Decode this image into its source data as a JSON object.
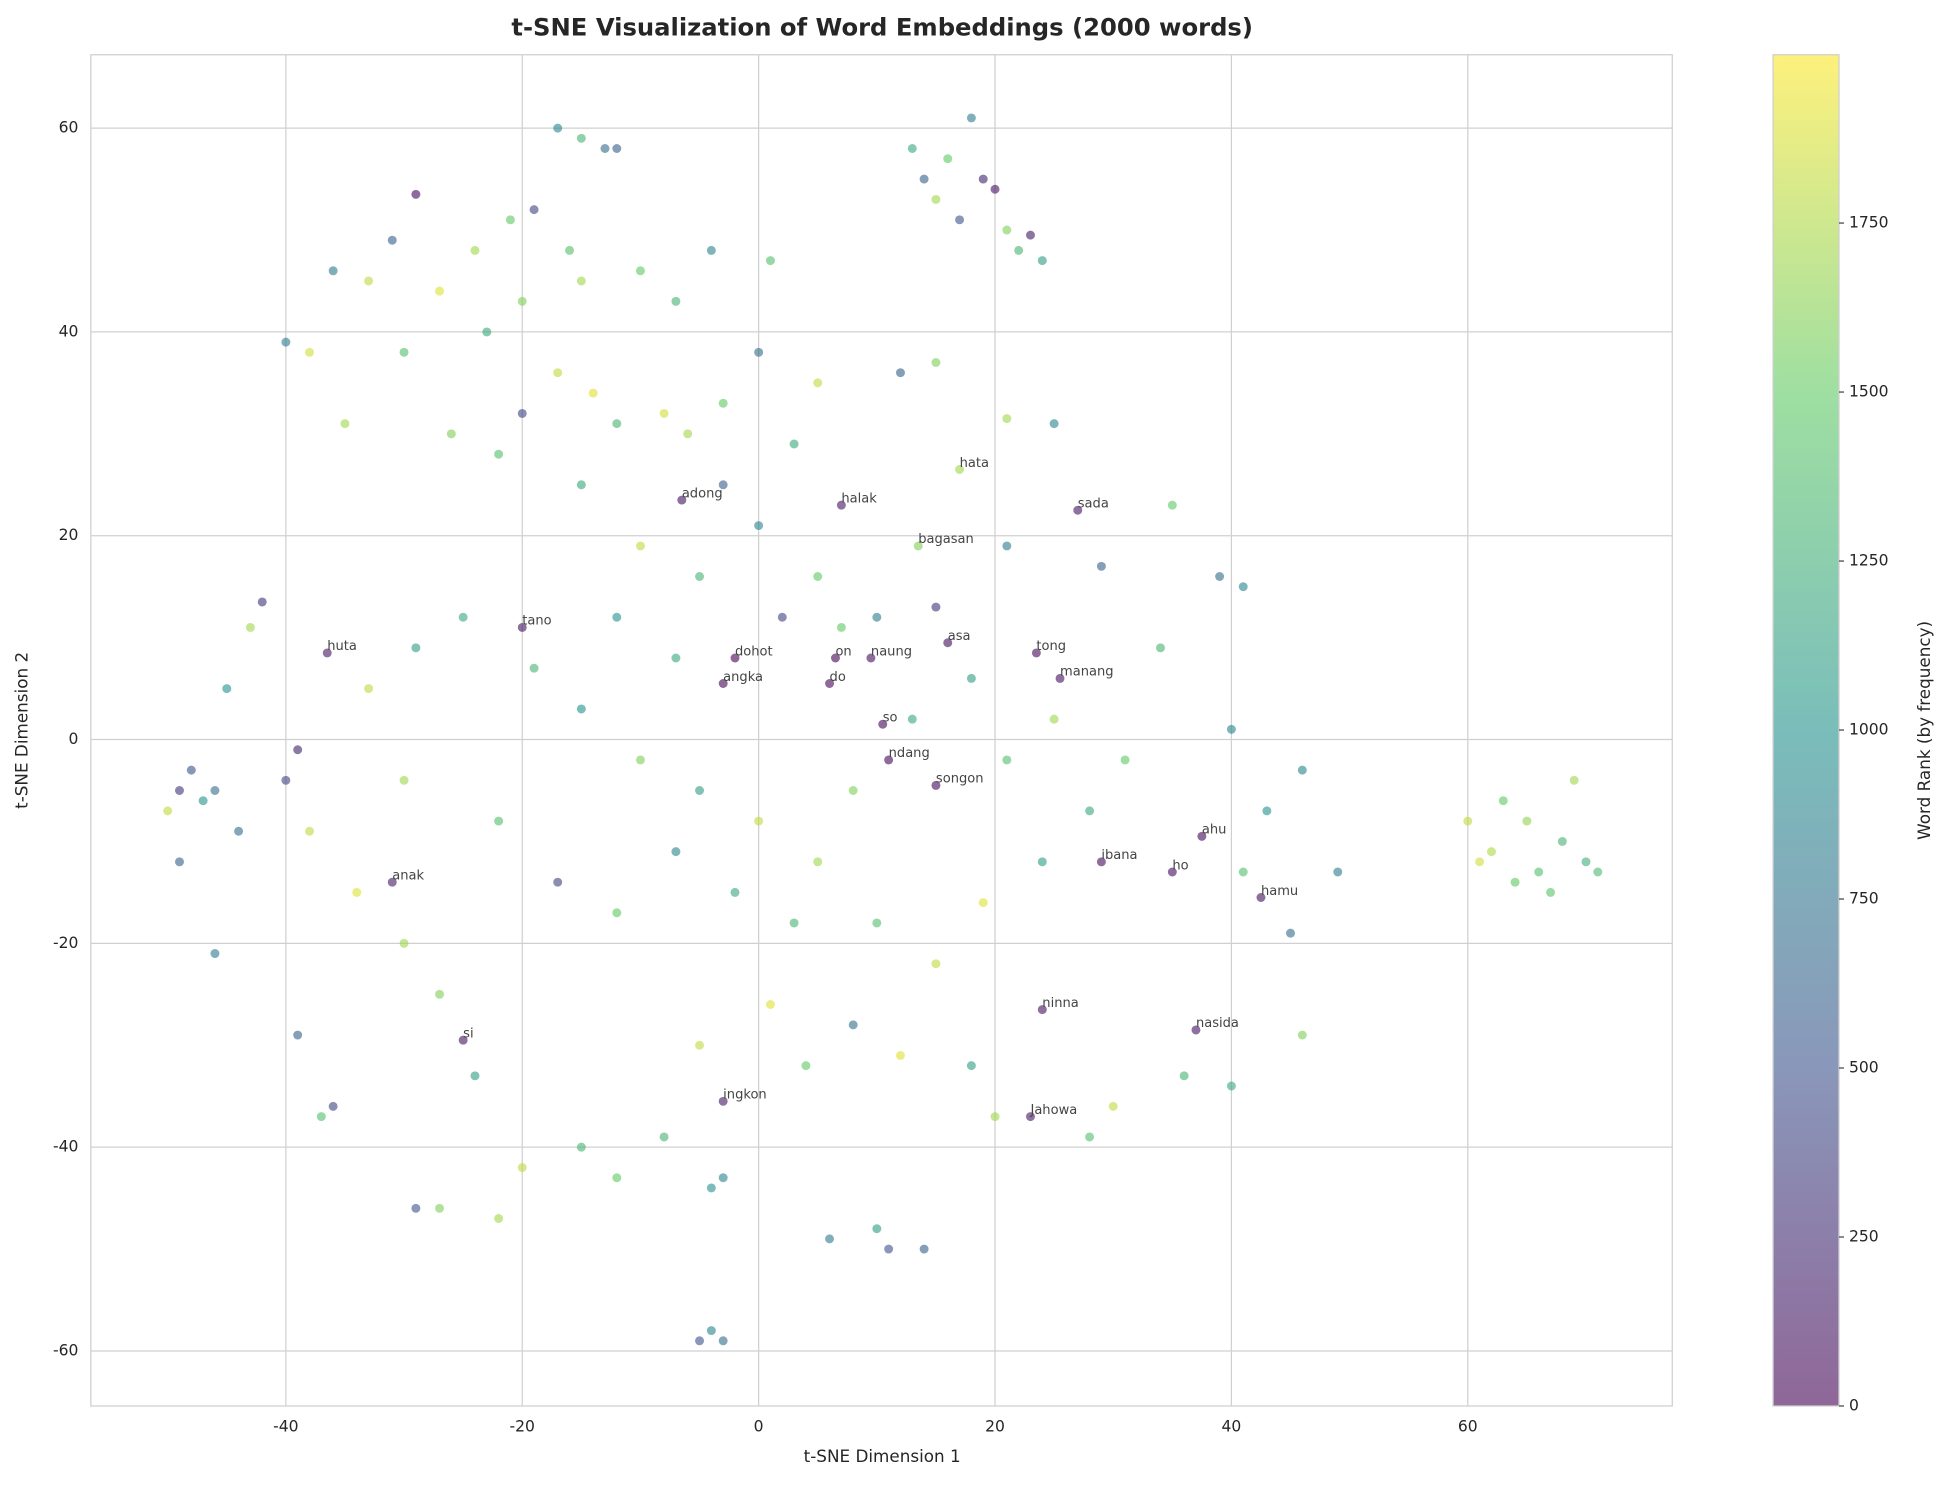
{
  "chart_data": {
    "type": "scatter",
    "title": "t-SNE Visualization of Word Embeddings (2000 words)",
    "x_label": "t-SNE Dimension 1",
    "y_label": "t-SNE Dimension 2",
    "colorbar_label": "Word Rank (by frequency)",
    "colormap": "viridis",
    "alpha": 0.6,
    "grid": true,
    "xlim": [
      -56.5,
      77.3
    ],
    "ylim": [
      -65.4,
      67.2
    ],
    "xticks": [
      -40,
      -20,
      0,
      20,
      40,
      60
    ],
    "yticks": [
      -60,
      -40,
      -20,
      0,
      20,
      40,
      60
    ],
    "clim": [
      0,
      1999
    ],
    "cticks": [
      0,
      250,
      500,
      750,
      1000,
      1250,
      1500,
      1750
    ],
    "x": [
      -17,
      -15,
      -13,
      -12,
      -19,
      -21,
      -16,
      -24,
      -29,
      -31,
      -33,
      -36,
      -27,
      -20,
      -15,
      -10,
      -7,
      -23,
      -30,
      -40,
      -38,
      -35,
      -17,
      -14,
      -12,
      -8,
      -26,
      -22,
      -20,
      -6,
      -3,
      1,
      0,
      -4,
      3,
      5,
      16,
      18,
      19,
      20,
      15,
      22,
      24,
      14,
      17,
      21,
      13,
      23,
      60,
      62,
      63,
      65,
      66,
      68,
      69,
      70,
      71,
      64,
      61,
      67,
      -49,
      -48,
      -47,
      -46,
      -50,
      -49,
      -46,
      -44,
      -4,
      -3,
      -5,
      6,
      10,
      11,
      14,
      -4,
      -3,
      -42,
      -43,
      -45,
      -39,
      -40,
      -38,
      -34,
      -30,
      -27,
      -24,
      -20,
      -29,
      -27,
      -37,
      -39,
      -36,
      -22,
      -15,
      -12,
      -8,
      -5,
      1,
      4,
      8,
      12,
      18,
      20,
      28,
      30,
      36,
      40,
      46,
      45,
      41,
      49,
      46,
      43,
      40,
      39,
      41,
      35,
      29,
      34,
      31,
      28,
      24,
      19,
      15,
      10,
      5,
      0,
      -5,
      -10,
      -15,
      -19,
      -25,
      -29,
      -33,
      -30,
      -22,
      -17,
      -12,
      -7,
      -2,
      3,
      8,
      13,
      18,
      21,
      25,
      10,
      5,
      0,
      -5,
      -10,
      -15,
      -3,
      12,
      15,
      21,
      25,
      -12,
      -7,
      2,
      7,
      15,
      21
    ],
    "y": [
      60,
      59,
      58,
      58,
      52,
      51,
      48,
      48,
      53.5,
      49,
      45,
      46,
      44,
      43,
      45,
      46,
      43,
      40,
      38,
      39,
      38,
      31,
      36,
      34,
      31,
      32,
      30,
      28,
      32,
      30,
      33,
      47,
      38,
      48,
      29,
      35,
      57,
      61,
      55,
      54,
      53,
      48,
      47,
      55,
      51,
      50,
      58,
      49.5,
      -8,
      -11,
      -6,
      -8,
      -13,
      -10,
      -4,
      -12,
      -13,
      -14,
      -12,
      -15,
      -5,
      -3,
      -6,
      -5,
      -7,
      -12,
      -21,
      -9,
      -58,
      -59,
      -59,
      -49,
      -48,
      -50,
      -50,
      -44,
      -43,
      13.5,
      11,
      5,
      -1,
      -4,
      -9,
      -15,
      -20,
      -25,
      -33,
      -42,
      -46,
      -46,
      -37,
      -29,
      -36,
      -47,
      -40,
      -43,
      -39,
      -30,
      -26,
      -32,
      -28,
      -31,
      -32,
      -37,
      -39,
      -36,
      -33,
      -34,
      -29,
      -19,
      -13,
      -13,
      -3,
      -7,
      1,
      16,
      15,
      23,
      17,
      9,
      -2,
      -7,
      -12,
      -16,
      -22,
      -18,
      -12,
      -8,
      -5,
      -2,
      3,
      7,
      12,
      9,
      5,
      -4,
      -8,
      -14,
      -17,
      -11,
      -15,
      -18,
      -5,
      2,
      6,
      -2,
      2,
      12,
      16,
      21,
      16,
      19,
      25,
      25,
      36,
      37,
      31.5,
      31,
      12,
      8,
      12,
      11,
      13,
      19
    ],
    "rank": [
      900,
      1300,
      700,
      600,
      400,
      1500,
      1400,
      1700,
      50,
      600,
      1800,
      800,
      1900,
      1600,
      1700,
      1500,
      1300,
      1200,
      1400,
      800,
      1850,
      1700,
      1800,
      1900,
      1300,
      1850,
      1600,
      1400,
      400,
      1700,
      1500,
      1400,
      700,
      900,
      1200,
      1800,
      1500,
      800,
      200,
      100,
      1700,
      1300,
      1100,
      600,
      500,
      1600,
      1200,
      150,
      1800,
      1750,
      1500,
      1650,
      1400,
      1300,
      1700,
      1250,
      1350,
      1500,
      1850,
      1450,
      300,
      500,
      1000,
      700,
      1800,
      600,
      800,
      700,
      900,
      700,
      500,
      800,
      1100,
      500,
      600,
      1000,
      900,
      300,
      1700,
      1000,
      200,
      400,
      1800,
      1900,
      1700,
      1600,
      1100,
      1800,
      500,
      1600,
      1400,
      600,
      400,
      1700,
      1300,
      1500,
      1300,
      1800,
      1900,
      1500,
      700,
      1900,
      1100,
      1700,
      1400,
      1800,
      1300,
      1200,
      1600,
      700,
      1400,
      800,
      900,
      1000,
      900,
      700,
      900,
      1500,
      600,
      1300,
      1500,
      1200,
      1100,
      1900,
      1800,
      1400,
      1700,
      1800,
      1100,
      1600,
      1000,
      1300,
      1200,
      1100,
      1800,
      1700,
      1400,
      400,
      1500,
      900,
      1200,
      1300,
      1600,
      1200,
      1100,
      1400,
      1700,
      800,
      1500,
      900,
      1300,
      1800,
      1200,
      600,
      600,
      1600,
      1700,
      900,
      1000,
      1200,
      400,
      1500,
      300,
      800
    ],
    "annotations": [
      {
        "text": "hata",
        "x": 17,
        "y": 26.5,
        "rank": 1700
      },
      {
        "text": "halak",
        "x": 7,
        "y": 23,
        "rank": 120
      },
      {
        "text": "adong",
        "x": -6.5,
        "y": 23.5,
        "rank": 90
      },
      {
        "text": "sada",
        "x": 27,
        "y": 22.5,
        "rank": 110
      },
      {
        "text": "bagasan",
        "x": 13.5,
        "y": 19,
        "rank": 1600
      },
      {
        "text": "tano",
        "x": -20,
        "y": 11,
        "rank": 100
      },
      {
        "text": "huta",
        "x": -36.5,
        "y": 8.5,
        "rank": 130
      },
      {
        "text": "asa",
        "x": 16,
        "y": 9.5,
        "rank": 60
      },
      {
        "text": "tong",
        "x": 23.5,
        "y": 8.5,
        "rank": 40
      },
      {
        "text": "manang",
        "x": 25.5,
        "y": 6,
        "rank": 80
      },
      {
        "text": "dohot",
        "x": -2,
        "y": 8,
        "rank": 10
      },
      {
        "text": "on",
        "x": 6.5,
        "y": 8,
        "rank": 20
      },
      {
        "text": "naung",
        "x": 9.5,
        "y": 8,
        "rank": 70
      },
      {
        "text": "angka",
        "x": -3,
        "y": 5.5,
        "rank": 15
      },
      {
        "text": "do",
        "x": 6,
        "y": 5.5,
        "rank": 25
      },
      {
        "text": "so",
        "x": 10.5,
        "y": 1.5,
        "rank": 30
      },
      {
        "text": "ndang",
        "x": 11,
        "y": -2,
        "rank": 35
      },
      {
        "text": "songon",
        "x": 15,
        "y": -4.5,
        "rank": 50
      },
      {
        "text": "ahu",
        "x": 37.5,
        "y": -9.5,
        "rank": 45
      },
      {
        "text": "ibana",
        "x": 29,
        "y": -12,
        "rank": 55
      },
      {
        "text": "ho",
        "x": 35,
        "y": -13,
        "rank": 65
      },
      {
        "text": "hamu",
        "x": 42.5,
        "y": -15.5,
        "rank": 75
      },
      {
        "text": "anak",
        "x": -31,
        "y": -14,
        "rank": 140
      },
      {
        "text": "ninna",
        "x": 24,
        "y": -26.5,
        "rank": 85
      },
      {
        "text": "nasida",
        "x": 37,
        "y": -28.5,
        "rank": 95
      },
      {
        "text": "si",
        "x": -25,
        "y": -29.5,
        "rank": 105
      },
      {
        "text": "ingkon",
        "x": -3,
        "y": -35.5,
        "rank": 115
      },
      {
        "text": "Jahowa",
        "x": 23,
        "y": -37,
        "rank": 125
      }
    ]
  }
}
